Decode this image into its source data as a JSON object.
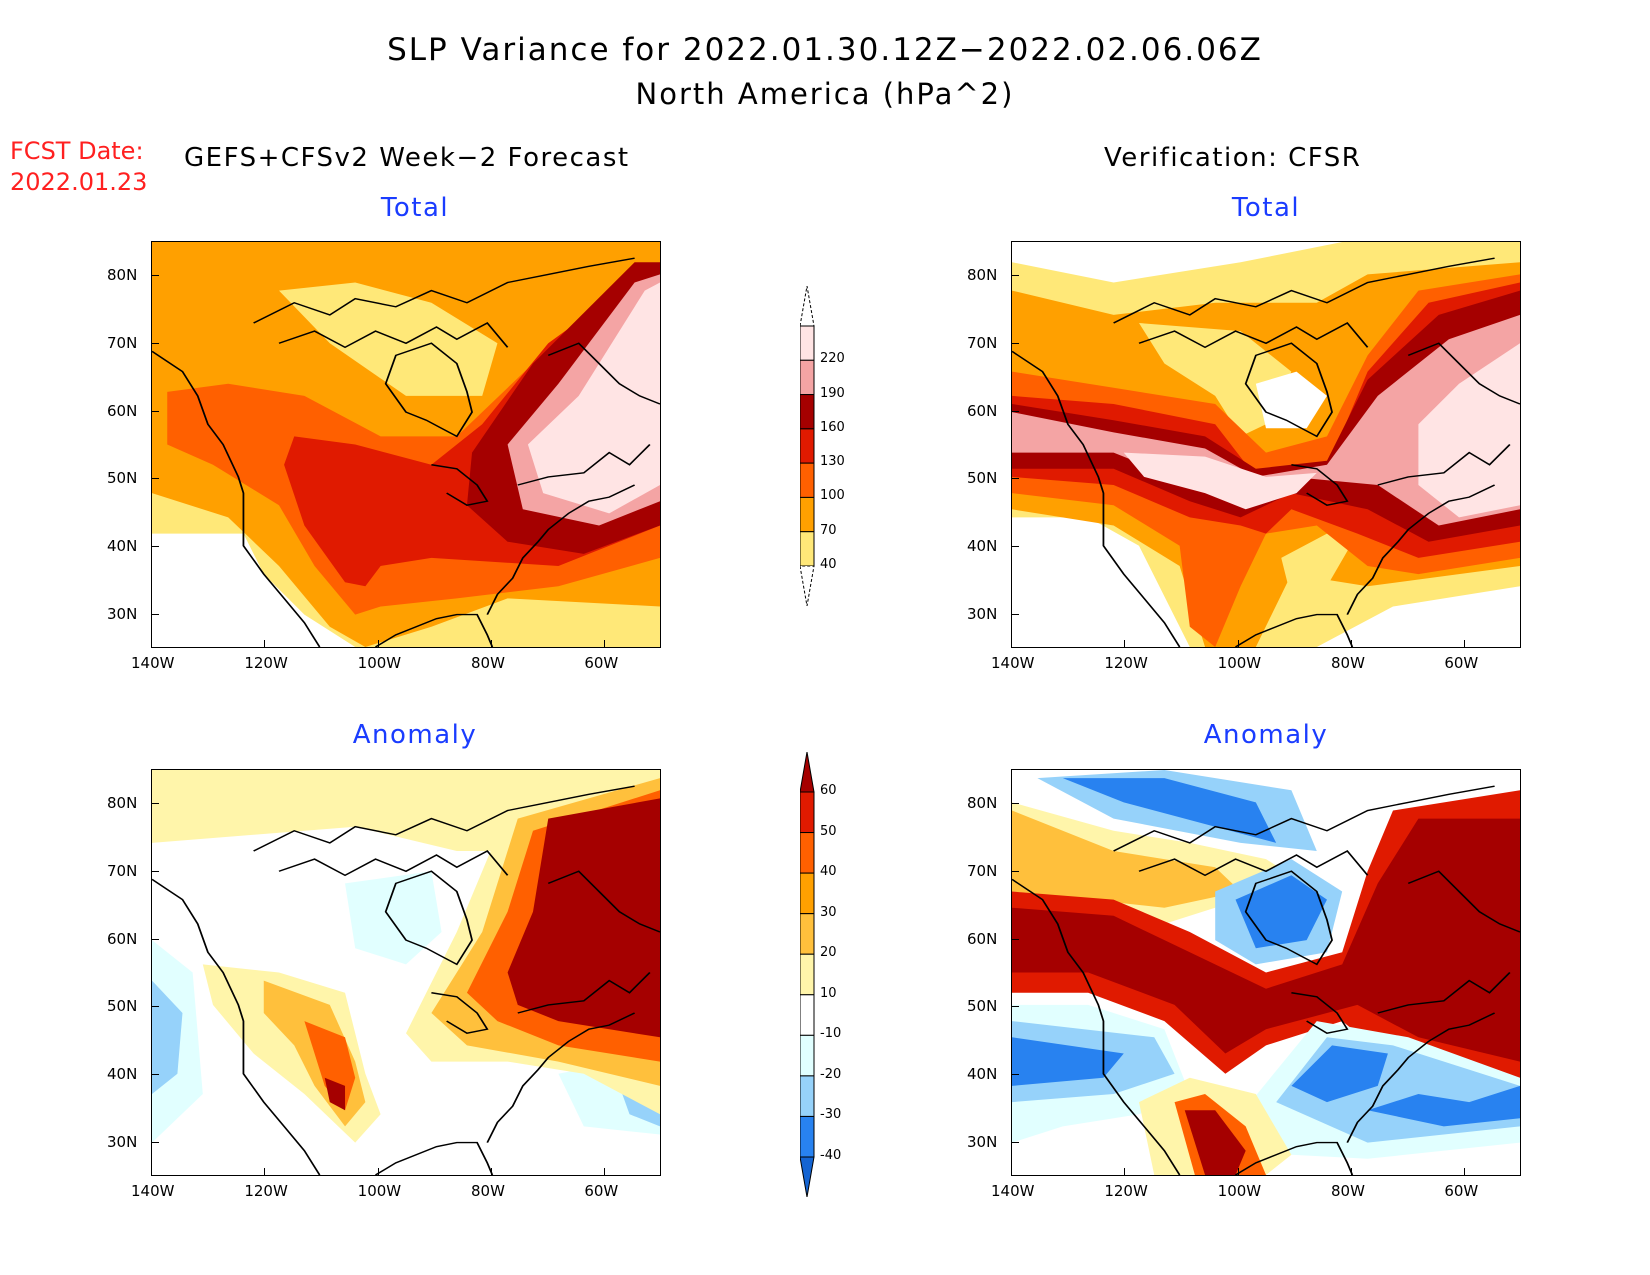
{
  "title": "SLP Variance for 2022.01.30.12Z−2022.02.06.06Z",
  "subtitle": "North America (hPa^2)",
  "fcst_label": "FCST Date:",
  "fcst_date": "2022.01.23",
  "left_header": "GEFS+CFSv2 Week−2 Forecast",
  "right_header": "Verification: CFSR",
  "chart_data": [
    {
      "type": "heatmap",
      "title": "Total",
      "source": "GEFS+CFSv2 Week-2 Forecast",
      "xlabels": [
        "140W",
        "120W",
        "100W",
        "80W",
        "60W"
      ],
      "ylabels": [
        "80N",
        "70N",
        "60N",
        "50N",
        "40N",
        "30N"
      ],
      "xlim": [
        -140,
        -50
      ],
      "ylim": [
        25,
        85
      ]
    },
    {
      "type": "heatmap",
      "title": "Total",
      "source": "Verification: CFSR",
      "xlabels": [
        "140W",
        "120W",
        "100W",
        "80W",
        "60W"
      ],
      "ylabels": [
        "80N",
        "70N",
        "60N",
        "50N",
        "40N",
        "30N"
      ],
      "xlim": [
        -140,
        -50
      ],
      "ylim": [
        25,
        85
      ]
    },
    {
      "type": "heatmap",
      "title": "Anomaly",
      "source": "GEFS+CFSv2 Week-2 Forecast",
      "xlabels": [
        "140W",
        "120W",
        "100W",
        "80W",
        "60W"
      ],
      "ylabels": [
        "80N",
        "70N",
        "60N",
        "50N",
        "40N",
        "30N"
      ],
      "xlim": [
        -140,
        -50
      ],
      "ylim": [
        25,
        85
      ]
    },
    {
      "type": "heatmap",
      "title": "Anomaly",
      "source": "Verification: CFSR",
      "xlabels": [
        "140W",
        "120W",
        "100W",
        "80W",
        "60W"
      ],
      "ylabels": [
        "80N",
        "70N",
        "60N",
        "50N",
        "40N",
        "30N"
      ],
      "xlim": [
        -140,
        -50
      ],
      "ylim": [
        25,
        85
      ]
    }
  ],
  "colorbar_total": {
    "levels": [
      "40",
      "70",
      "100",
      "130",
      "160",
      "190",
      "220"
    ],
    "colors": [
      "#ffe878",
      "#ffa000",
      "#ff6000",
      "#e01a00",
      "#a50000",
      "#f4a4a4",
      "#ffe4e4"
    ]
  },
  "colorbar_anom": {
    "levels": [
      "-40",
      "-30",
      "-20",
      "-10",
      "10",
      "20",
      "30",
      "40",
      "50",
      "60"
    ],
    "colors": [
      "#1464d2",
      "#2882f0",
      "#96d2fa",
      "#e1ffff",
      "#ffffff",
      "#fff5aa",
      "#ffc03c",
      "#ffa000",
      "#ff6000",
      "#e01a00",
      "#a50000"
    ]
  }
}
